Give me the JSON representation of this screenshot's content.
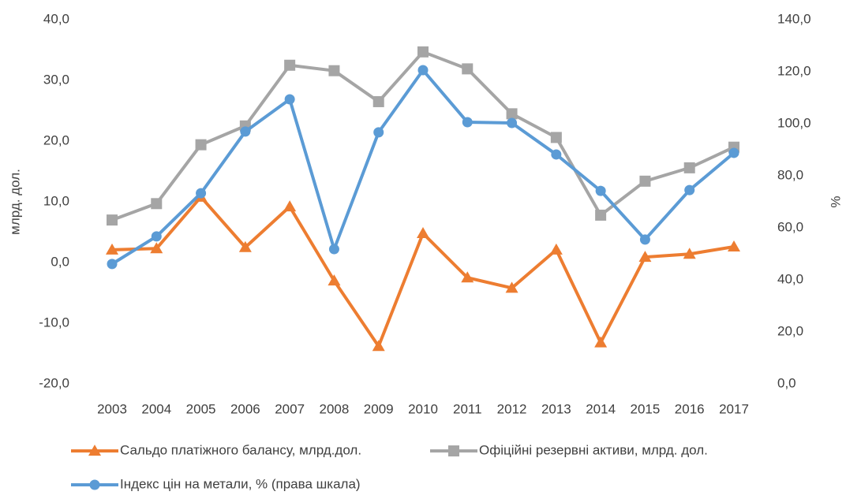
{
  "chart_data": {
    "type": "line",
    "categories": [
      "2003",
      "2004",
      "2005",
      "2006",
      "2007",
      "2008",
      "2009",
      "2010",
      "2011",
      "2012",
      "2013",
      "2014",
      "2015",
      "2016",
      "2017"
    ],
    "ylabel": "млрд. дол.",
    "y2label": "%",
    "ylim": [
      -20,
      40
    ],
    "yticks": [
      {
        "value": -20,
        "label": "-20,0"
      },
      {
        "value": -10,
        "label": "-10,0"
      },
      {
        "value": 0,
        "label": "0,0"
      },
      {
        "value": 10,
        "label": "10,0"
      },
      {
        "value": 20,
        "label": "20,0"
      },
      {
        "value": 30,
        "label": "30,0"
      },
      {
        "value": 40,
        "label": "40,0"
      }
    ],
    "y2lim": [
      0,
      140
    ],
    "y2ticks": [
      {
        "value": 0,
        "label": "0,0"
      },
      {
        "value": 20,
        "label": "20,0"
      },
      {
        "value": 40,
        "label": "40,0"
      },
      {
        "value": 60,
        "label": "60,0"
      },
      {
        "value": 80,
        "label": "80,0"
      },
      {
        "value": 100,
        "label": "100,0"
      },
      {
        "value": 120,
        "label": "120,0"
      },
      {
        "value": 140,
        "label": "140,0"
      }
    ],
    "grid": false,
    "legend": "bottom",
    "series": [
      {
        "name": "Сальдо платіжного балансу, млрд.дол.",
        "color": "#ED7D31",
        "marker": "triangle",
        "values": [
          2.1,
          2.3,
          10.8,
          2.5,
          9.2,
          -3.0,
          -13.8,
          4.8,
          -2.5,
          -4.2,
          2.1,
          -13.2,
          0.9,
          1.4,
          2.6
        ]
      },
      {
        "name": "Офіційні резервні активи, млрд. дол.",
        "color": "#A5A5A5",
        "marker": "square",
        "values": [
          7.0,
          9.7,
          19.4,
          22.5,
          32.5,
          31.6,
          26.5,
          34.7,
          31.9,
          24.5,
          20.6,
          7.8,
          13.4,
          15.6,
          19.0
        ]
      },
      {
        "name": "Індекс цін на метали, % (права шкала)",
        "color": "#5B9BD5",
        "marker": "circle",
        "axis": "y2",
        "values": [
          46.1,
          56.7,
          73.3,
          97.0,
          109.4,
          51.8,
          96.7,
          120.6,
          100.6,
          100.3,
          88.2,
          74.2,
          55.5,
          74.5,
          88.8
        ]
      }
    ]
  }
}
